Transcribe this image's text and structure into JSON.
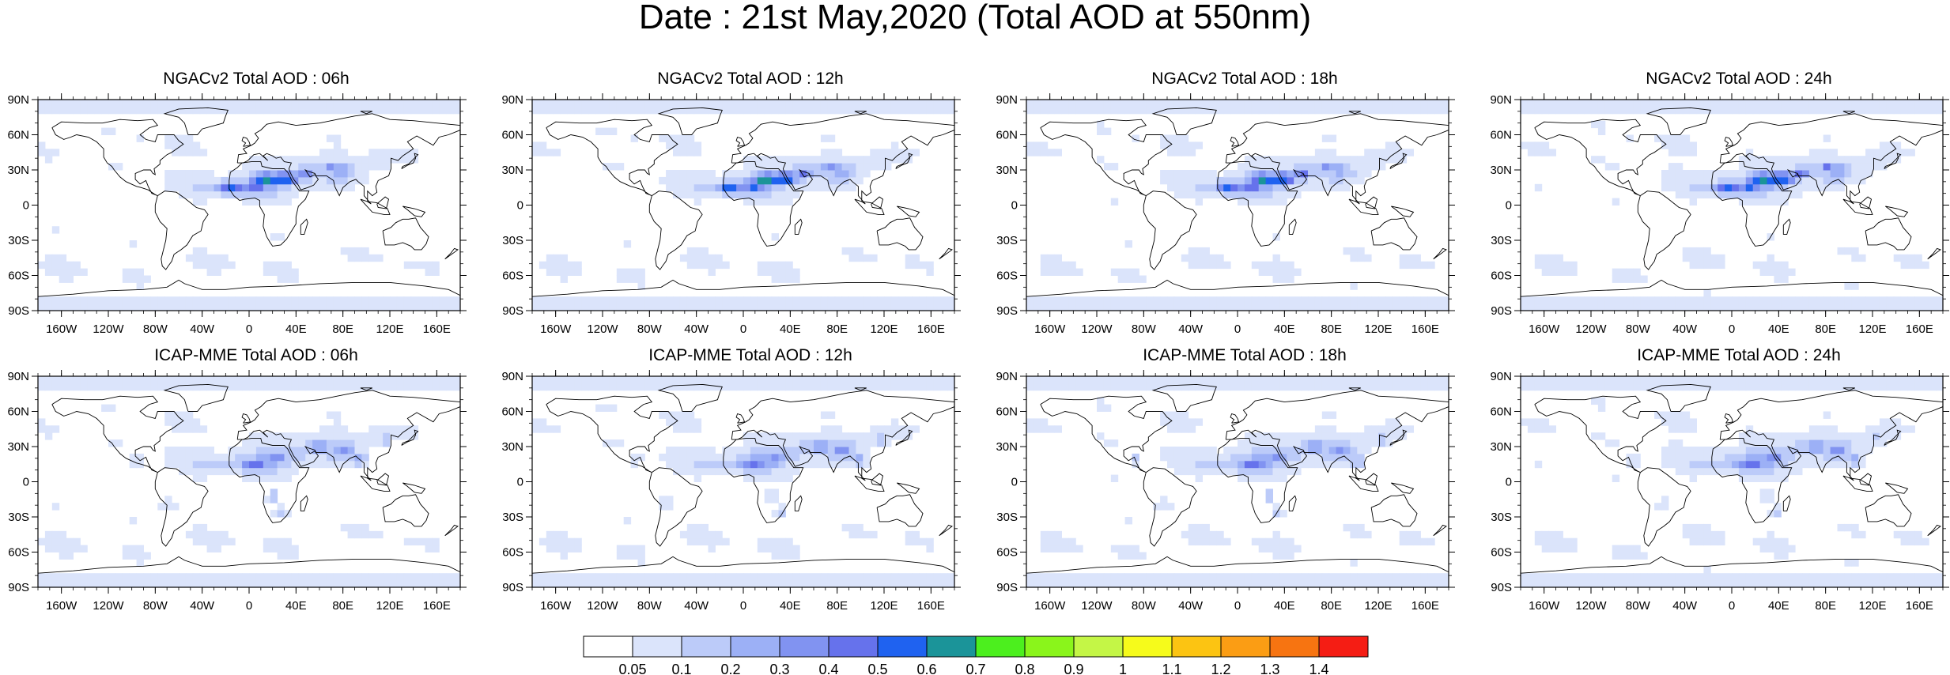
{
  "page": {
    "title": "Date : 21st May,2020 (Total AOD at 550nm)"
  },
  "map_grid": {
    "lat_ticks": [
      "90N",
      "60N",
      "30N",
      "0",
      "30S",
      "60S",
      "90S"
    ],
    "lat_values": [
      90,
      60,
      30,
      0,
      -30,
      -60,
      -90
    ],
    "lon_ticks": [
      "160W",
      "120W",
      "80W",
      "40W",
      "0",
      "40E",
      "80E",
      "120E",
      "160E"
    ],
    "lon_values": [
      -160,
      -120,
      -80,
      -40,
      0,
      40,
      80,
      120,
      160
    ],
    "lon_range": [
      -180,
      180
    ],
    "lat_range": [
      -90,
      90
    ]
  },
  "panels": [
    {
      "title": "NGACv2 Total AOD : 06h",
      "model": "ngac",
      "hour": 6
    },
    {
      "title": "NGACv2 Total AOD : 12h",
      "model": "ngac",
      "hour": 12
    },
    {
      "title": "NGACv2 Total AOD : 18h",
      "model": "ngac",
      "hour": 18
    },
    {
      "title": "NGACv2 Total AOD : 24h",
      "model": "ngac",
      "hour": 24
    },
    {
      "title": "ICAP-MME Total AOD : 06h",
      "model": "icap",
      "hour": 6
    },
    {
      "title": "ICAP-MME Total AOD : 12h",
      "model": "icap",
      "hour": 12
    },
    {
      "title": "ICAP-MME Total AOD : 18h",
      "model": "icap",
      "hour": 18
    },
    {
      "title": "ICAP-MME Total AOD : 24h",
      "model": "icap",
      "hour": 24
    }
  ],
  "colorbar": {
    "labels": [
      "0.05",
      "0.1",
      "0.2",
      "0.3",
      "0.4",
      "0.5",
      "0.6",
      "0.7",
      "0.8",
      "0.9",
      "1",
      "1.1",
      "1.2",
      "1.3",
      "1.4"
    ],
    "colors": [
      "#ffffff",
      "#dbe4fb",
      "#bccbf9",
      "#9cb0f6",
      "#8193f1",
      "#6672ec",
      "#1f62f0",
      "#1b9499",
      "#4cef1e",
      "#8af51b",
      "#c4f646",
      "#f6fb1b",
      "#fcc412",
      "#fb9d14",
      "#f77411",
      "#f51d14"
    ]
  }
}
